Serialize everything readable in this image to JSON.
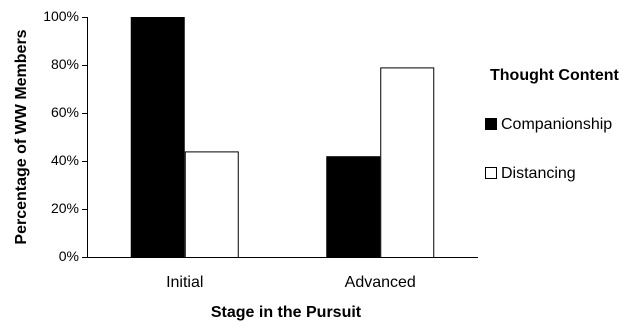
{
  "chart_data": {
    "type": "bar",
    "title": "",
    "xlabel": "Stage in the Pursuit",
    "ylabel": "Percentage of WW Members",
    "categories": [
      "Initial",
      "Advanced"
    ],
    "ylim": [
      0,
      100
    ],
    "yticks": [
      0,
      20,
      40,
      60,
      80,
      100
    ],
    "ytick_labels": [
      "0%",
      "20%",
      "40%",
      "60%",
      "80%",
      "100%"
    ],
    "grid": false,
    "legend_position": "right",
    "legend_title": "Thought Content",
    "series": [
      {
        "name": "Companionship",
        "values": [
          100,
          42
        ],
        "color": "#000000"
      },
      {
        "name": "Distancing",
        "values": [
          44,
          79
        ],
        "color": "#ffffff"
      }
    ]
  }
}
